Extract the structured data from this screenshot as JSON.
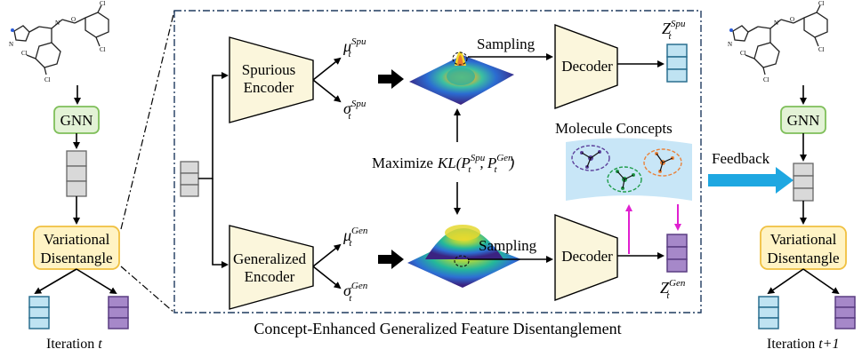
{
  "left_panel": {
    "gnn_label": "GNN",
    "vd_line1": "Variational",
    "vd_line2": "Disentangle",
    "iteration_text": "Iteration",
    "iteration_var": "t"
  },
  "right_panel": {
    "gnn_label": "GNN",
    "vd_line1": "Variational",
    "vd_line2": "Disentangle",
    "iteration_text": "Iteration",
    "iteration_var": "t+1",
    "feedback_label": "Feedback"
  },
  "center": {
    "spurious_encoder_line1": "Spurious",
    "spurious_encoder_line2": "Encoder",
    "generalized_encoder_line1": "Generalized",
    "generalized_encoder_line2": "Encoder",
    "mu_spu": "μ",
    "mu_spu_sup": "Spu",
    "sigma_spu": "σ",
    "sigma_spu_sup": "Spu",
    "mu_gen": "μ",
    "mu_gen_sup": "Gen",
    "sigma_gen": "σ",
    "sigma_gen_sup": "Gen",
    "sub_t": "t",
    "sampling_top": "Sampling",
    "sampling_bottom": "Sampling",
    "decoder_top": "Decoder",
    "decoder_bottom": "Decoder",
    "z_spu": "Z",
    "z_spu_sup": "Spu",
    "z_gen": "Z",
    "z_gen_sup": "Gen",
    "maximize_text": "Maximize",
    "kl_text": "KL(P",
    "kl_sup1": "Spu",
    "kl_mid": ", P",
    "kl_sup2": "Gen",
    "kl_end": ")",
    "molecule_concepts": "Molecule Concepts",
    "caption": "Concept-Enhanced Generalized Feature Disentanglement"
  },
  "colors": {
    "gnn_fill": "#e3f2d6",
    "gnn_stroke": "#7fbf5a",
    "vd_fill": "#fff3c4",
    "vd_stroke": "#f0c040",
    "encoder_fill": "#fbf6dc",
    "blue_cell": "#bfe3f2",
    "blue_cell_stroke": "#2a6f8f",
    "purple_cell": "#a688c9",
    "purple_cell_stroke": "#5a3d82",
    "gray_cell": "#d9d9d9",
    "feedback_arrow": "#1ea7e1",
    "concept_arrow": "#e020d0",
    "concept_bg": "#c8e6f7"
  }
}
